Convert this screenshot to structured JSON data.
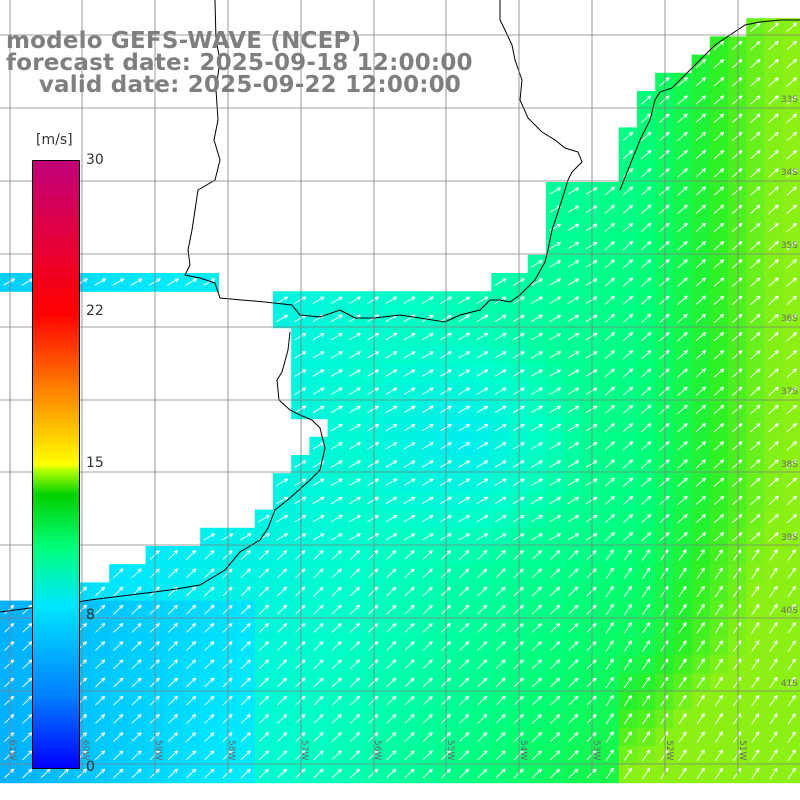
{
  "title": {
    "line1": "modelo GEFS-WAVE (NCEP)",
    "line2": "forecast date: 2025-09-18 12:00:00",
    "line3": "    valid date: 2025-09-22 12:00:00"
  },
  "colorbar": {
    "unit": "[m/s]",
    "ticks": [
      "30",
      "22",
      "15",
      "8",
      "0"
    ],
    "min": 0,
    "max": 30,
    "colors": {
      "v0": "#0000ff",
      "v8": "#00e6ff",
      "v11": "#00ff80",
      "v15": "#ffff00",
      "v22": "#ff6600",
      "v30": "#c0007a"
    }
  },
  "map": {
    "land_color": "#ffffff",
    "coastline_color": "#000000",
    "grid_color": "#808080",
    "arrow_color": "#ffffff",
    "lat_labels": [
      "33S",
      "34S",
      "35S",
      "36S",
      "37S",
      "38S",
      "39S",
      "40S",
      "41S"
    ],
    "lon_labels": [
      "61W",
      "60W",
      "59W",
      "58W",
      "57W",
      "56W",
      "55W",
      "54W",
      "53W",
      "52W",
      "51W"
    ]
  }
}
